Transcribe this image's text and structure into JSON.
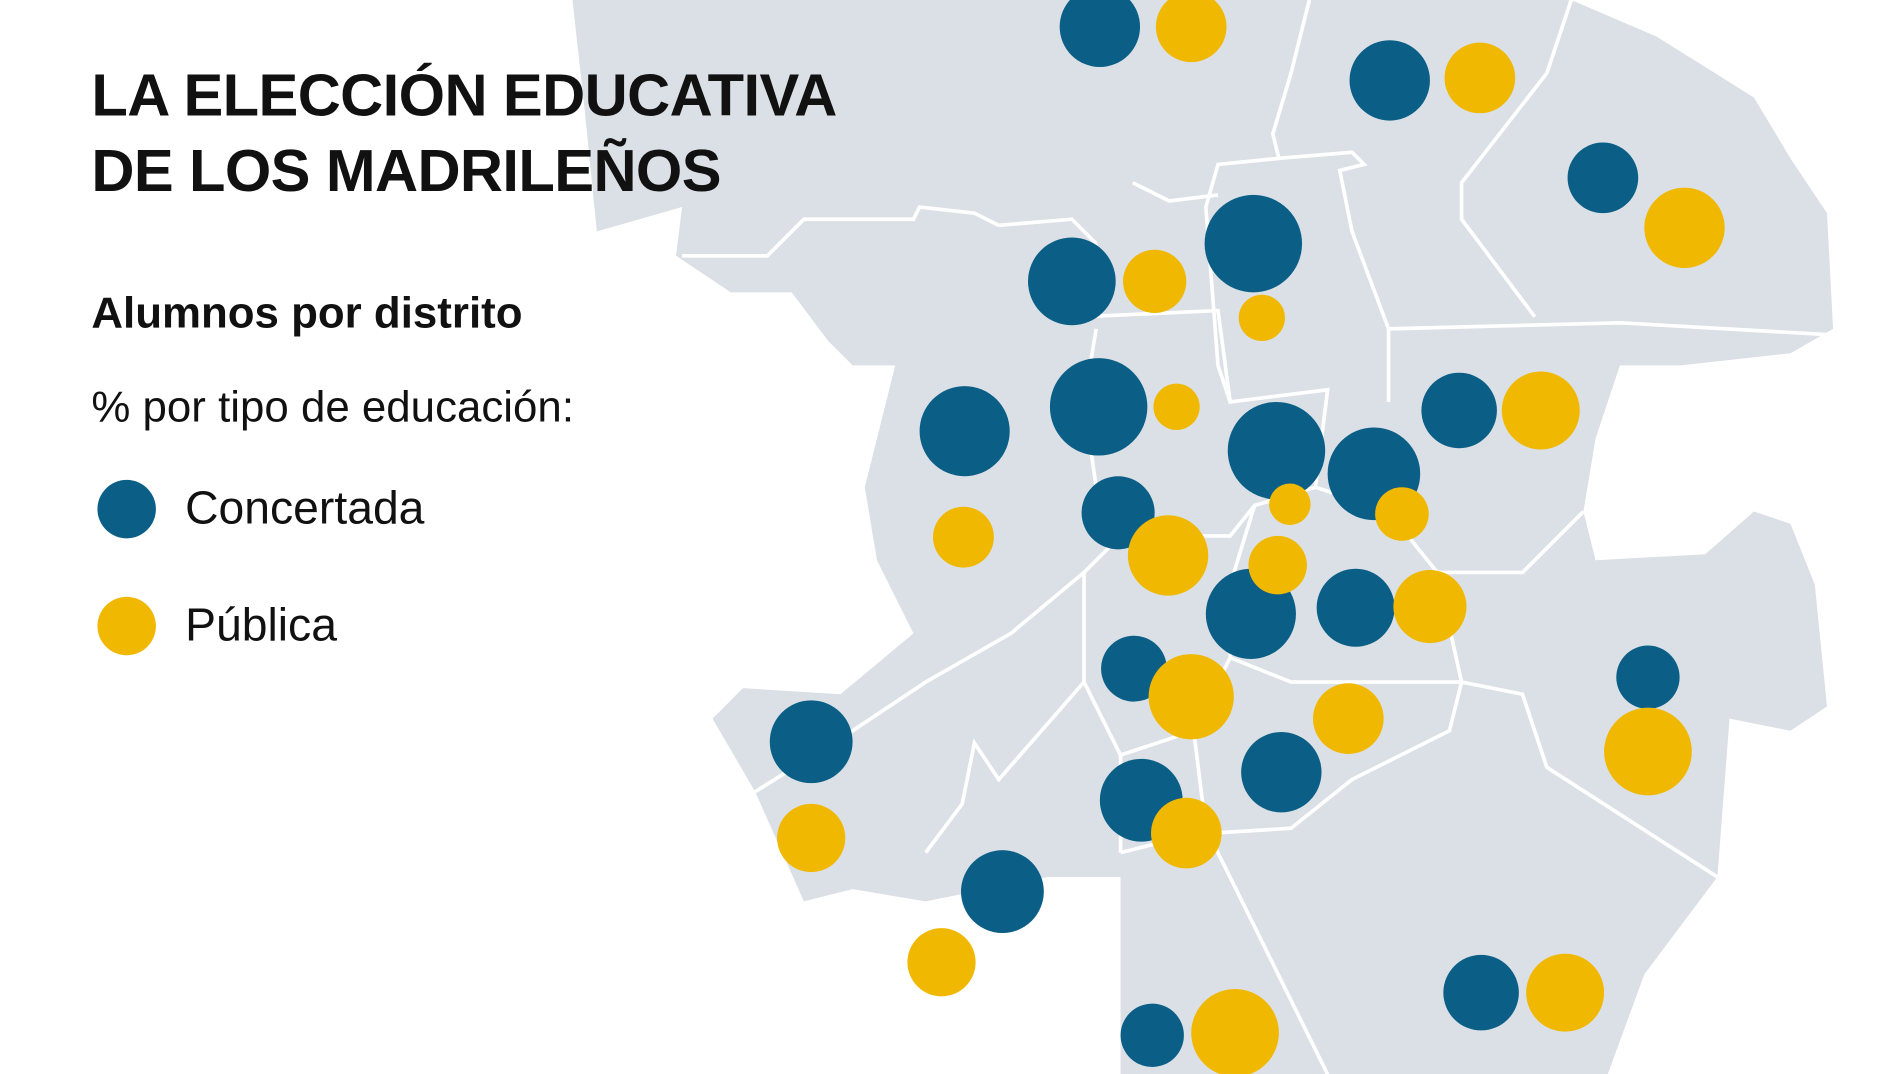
{
  "title": {
    "line1": "LA ELECCIÓN EDUCATIVA",
    "line2": "DE LOS MADRILEÑOS"
  },
  "subtitle": "Alumnos por distrito",
  "description": "% por tipo de educación:",
  "legend": [
    {
      "label": "Concertada",
      "color": "#0b5f86"
    },
    {
      "label": "Pública",
      "color": "#f0b800"
    }
  ],
  "colors": {
    "map_fill": "#dbe0e6",
    "district_border": "#ffffff"
  }
}
